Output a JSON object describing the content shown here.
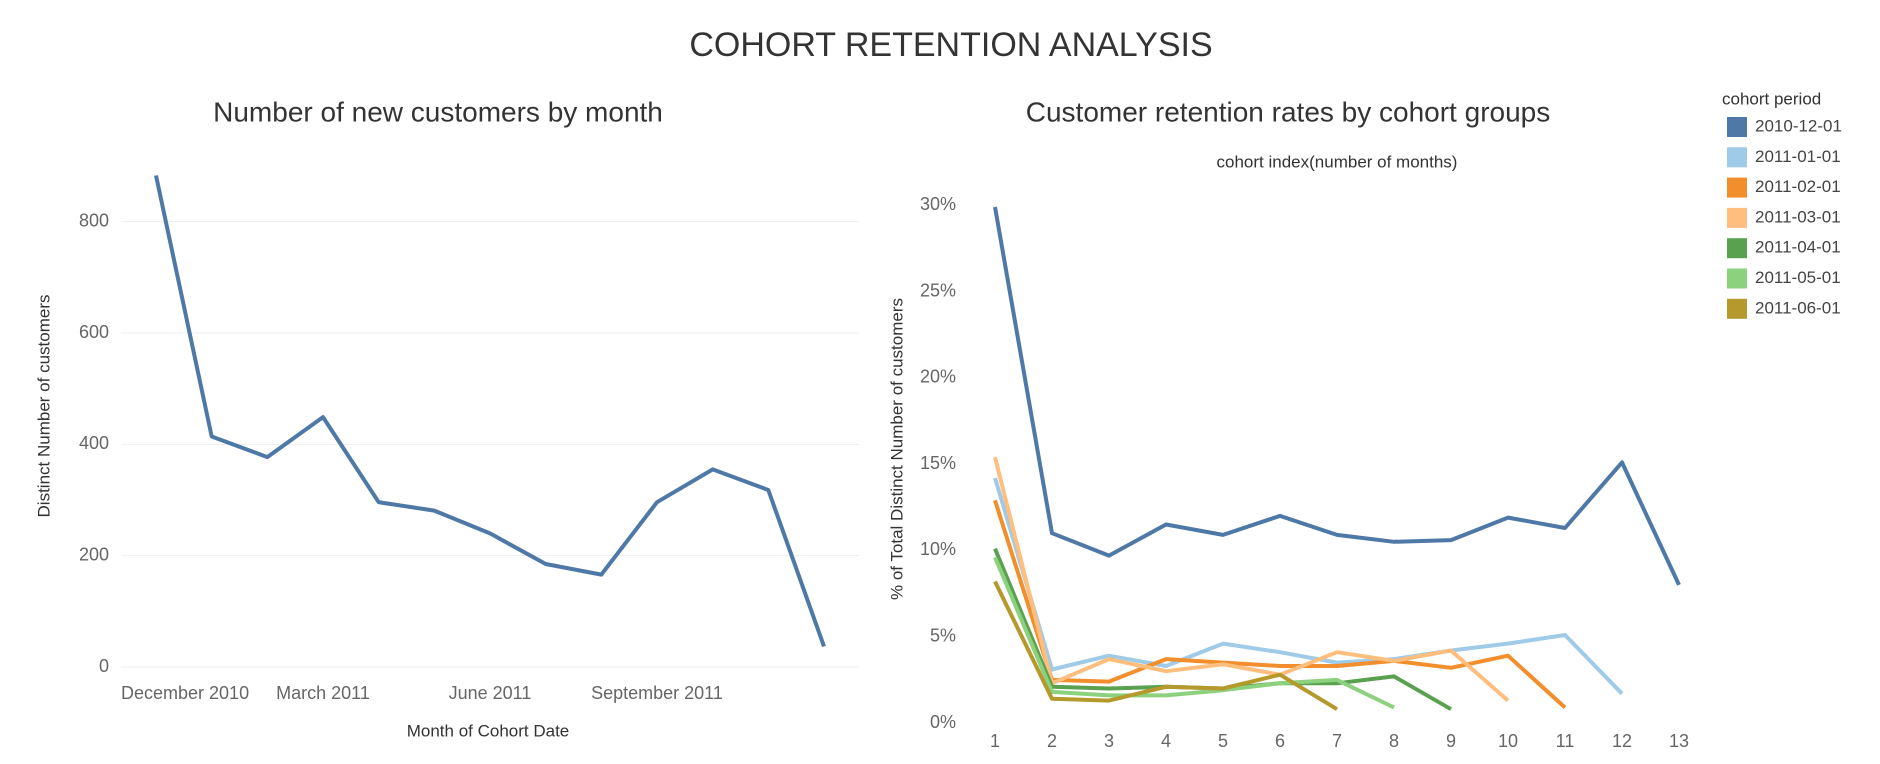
{
  "title": "COHORT RETENTION ANALYSIS",
  "chart_data": [
    {
      "type": "line",
      "title": "Number of new customers by month",
      "x_label": "Month of Cohort Date",
      "y_label": "Distinct Number of customers",
      "categories": [
        "December 2010",
        null,
        null,
        "March 2011",
        null,
        null,
        "June 2011",
        null,
        null,
        "September 2011",
        null,
        null,
        null
      ],
      "values": [
        883,
        414,
        377,
        449,
        296,
        281,
        240,
        185,
        166,
        296,
        355,
        318,
        37
      ],
      "color": "#4e79a7",
      "ylim": [
        0,
        900
      ],
      "yticks": [
        0,
        200,
        400,
        600,
        800
      ],
      "grid": true
    },
    {
      "type": "line",
      "title": "Customer retention rates by cohort groups",
      "x_label": "cohort index(number of months)",
      "y_label": "% of Total Distinct Number of customers",
      "legend_title": "cohort period",
      "legend": "right",
      "x": [
        1,
        2,
        3,
        4,
        5,
        6,
        7,
        8,
        9,
        10,
        11,
        12,
        13
      ],
      "xlim": [
        1,
        13
      ],
      "xticks": [
        1,
        2,
        3,
        4,
        5,
        6,
        7,
        8,
        9,
        10,
        11,
        12,
        13
      ],
      "ylim": [
        0,
        31
      ],
      "yticks": [
        {
          "value": 0,
          "label": "0%"
        },
        {
          "value": 5,
          "label": "5%"
        },
        {
          "value": 10,
          "label": "10%"
        },
        {
          "value": 15,
          "label": "15%"
        },
        {
          "value": 20,
          "label": "20%"
        },
        {
          "value": 25,
          "label": "25%"
        },
        {
          "value": 30,
          "label": "30%"
        }
      ],
      "grid": false,
      "series": [
        {
          "name": "2010-12-01",
          "color": "#4e79a7",
          "values": [
            29.9,
            11.0,
            9.7,
            11.5,
            10.9,
            12.0,
            10.9,
            10.5,
            10.6,
            11.9,
            11.3,
            15.1,
            8.0
          ]
        },
        {
          "name": "2011-01-01",
          "color": "#a0cbe8",
          "values": [
            14.2,
            3.1,
            3.9,
            3.3,
            4.6,
            4.1,
            3.5,
            3.7,
            4.2,
            4.6,
            5.1,
            1.7,
            null
          ]
        },
        {
          "name": "2011-02-01",
          "color": "#f28e2b",
          "values": [
            12.9,
            2.5,
            2.4,
            3.7,
            3.5,
            3.3,
            3.3,
            3.6,
            3.2,
            3.9,
            0.9,
            null,
            null
          ]
        },
        {
          "name": "2011-03-01",
          "color": "#ffbe7d",
          "values": [
            15.4,
            2.3,
            3.7,
            3.0,
            3.4,
            2.8,
            4.1,
            3.6,
            4.2,
            1.3,
            null,
            null,
            null
          ]
        },
        {
          "name": "2011-04-01",
          "color": "#59a14f",
          "values": [
            10.1,
            2.1,
            2.0,
            2.1,
            2.0,
            2.3,
            2.3,
            2.7,
            0.8,
            null,
            null,
            null,
            null
          ]
        },
        {
          "name": "2011-05-01",
          "color": "#8cd17d",
          "values": [
            9.6,
            1.8,
            1.6,
            1.6,
            1.9,
            2.3,
            2.5,
            0.9,
            null,
            null,
            null,
            null,
            null
          ]
        },
        {
          "name": "2011-06-01",
          "color": "#b6992d",
          "values": [
            8.2,
            1.4,
            1.3,
            2.1,
            2.0,
            2.8,
            0.8,
            null,
            null,
            null,
            null,
            null,
            null
          ]
        }
      ]
    }
  ]
}
